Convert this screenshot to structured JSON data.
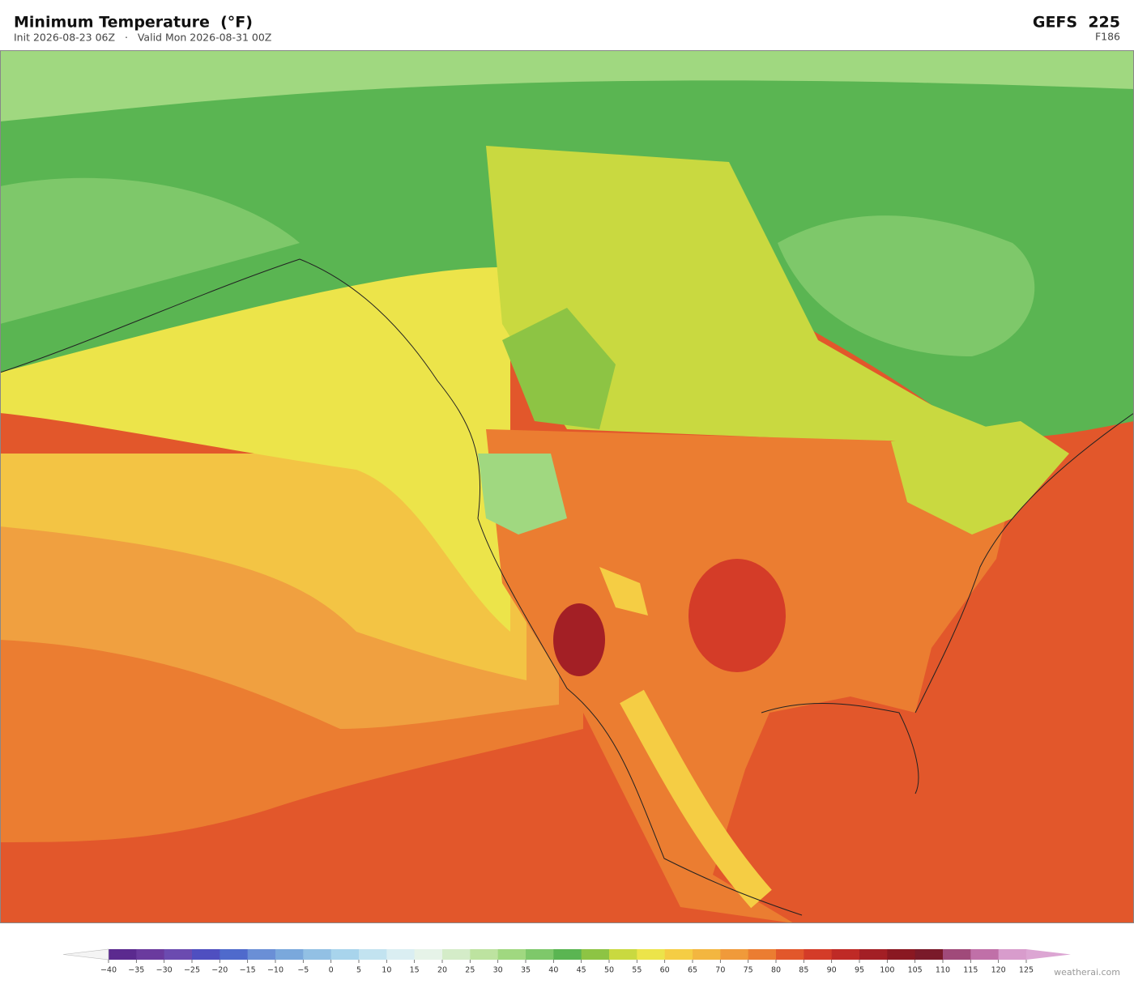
{
  "header": {
    "title": "Minimum Temperature  (°F)",
    "subtitle": "Init 2026-08-23 06Z   ·   Valid Mon 2026-08-31 00Z",
    "model": "GEFS  225",
    "forecast_hour": "F186"
  },
  "colorbar": {
    "ticks": [
      {
        "value": -40,
        "label": "−40"
      },
      {
        "value": -35,
        "label": "−35"
      },
      {
        "value": -30,
        "label": "−30"
      },
      {
        "value": -25,
        "label": "−25"
      },
      {
        "value": -20,
        "label": "−20"
      },
      {
        "value": -15,
        "label": "−15"
      },
      {
        "value": -10,
        "label": "−10"
      },
      {
        "value": -5,
        "label": "−5"
      },
      0,
      5,
      10,
      15,
      20,
      25,
      30,
      35,
      40,
      45,
      50,
      55,
      60,
      65,
      70,
      75,
      80,
      85,
      90,
      95,
      100,
      105,
      110,
      115,
      120,
      125
    ],
    "colors": [
      "#5b2a8f",
      "#6a3a9e",
      "#6b4bb0",
      "#4f4fc0",
      "#4f6acc",
      "#6a8fd6",
      "#7aa8dc",
      "#92c0e4",
      "#a8d4ec",
      "#c2e3f0",
      "#daeef2",
      "#e6f3e8",
      "#d4ecc8",
      "#bde3a0",
      "#a0d880",
      "#7ec86a",
      "#5ab552",
      "#8dc444",
      "#c9d940",
      "#ece44a",
      "#f5cd44",
      "#f3b640",
      "#f09a3a",
      "#eb7d31",
      "#e2572b",
      "#d43c28",
      "#bf2a26",
      "#a31f25",
      "#8a1822",
      "#7a1a2a",
      "#a04a7a",
      "#c070a8",
      "#d89ccc"
    ],
    "extend_colors": [
      "#f4f4f4",
      "#dca6d3"
    ]
  },
  "watermark": "weatherai.com"
}
